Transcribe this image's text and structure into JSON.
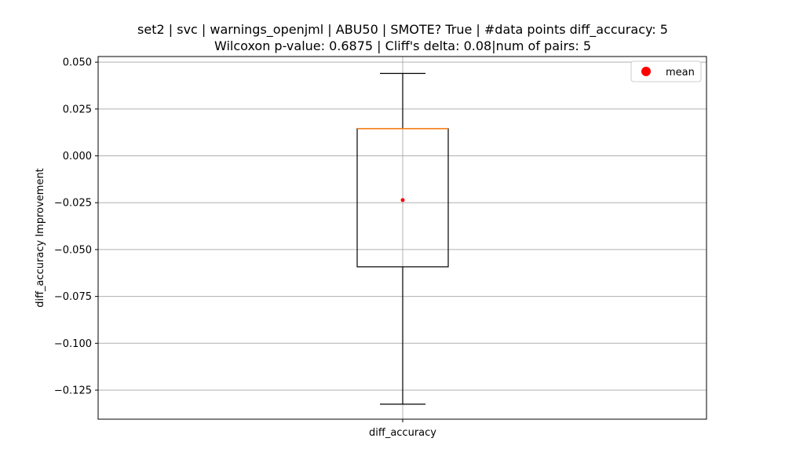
{
  "chart_data": {
    "type": "box",
    "title_line1": "set2 | svc | warnings_openjml | ABU50 | SMOTE? True | #data points diff_accuracy: 5",
    "title_line2": "Wilcoxon p-value: 0.6875 | Cliff's delta: 0.08|num of pairs: 5",
    "xlabel": "",
    "ylabel": "diff_accuracy Improvement",
    "categories": [
      "diff_accuracy"
    ],
    "box": {
      "whisker_low": -0.1325,
      "q1": -0.0592,
      "median": 0.0145,
      "q3": 0.0145,
      "whisker_high": 0.044,
      "mean": -0.0236
    },
    "ylim": [
      -0.1405,
      0.053
    ],
    "yticks": [
      0.05,
      0.025,
      0.0,
      -0.025,
      -0.05,
      -0.075,
      -0.1,
      -0.125
    ],
    "ytick_labels": [
      "0.050",
      "0.025",
      "0.000",
      "−0.025",
      "−0.050",
      "−0.075",
      "−0.100",
      "−0.125"
    ],
    "grid": true,
    "legend": {
      "position": "top-right",
      "entries": [
        {
          "label": "mean",
          "color": "#ff0000"
        }
      ]
    },
    "colors": {
      "box": "#000000",
      "median": "#ff7f0e",
      "mean": "#ff0000",
      "grid": "#b0b0b0"
    }
  }
}
